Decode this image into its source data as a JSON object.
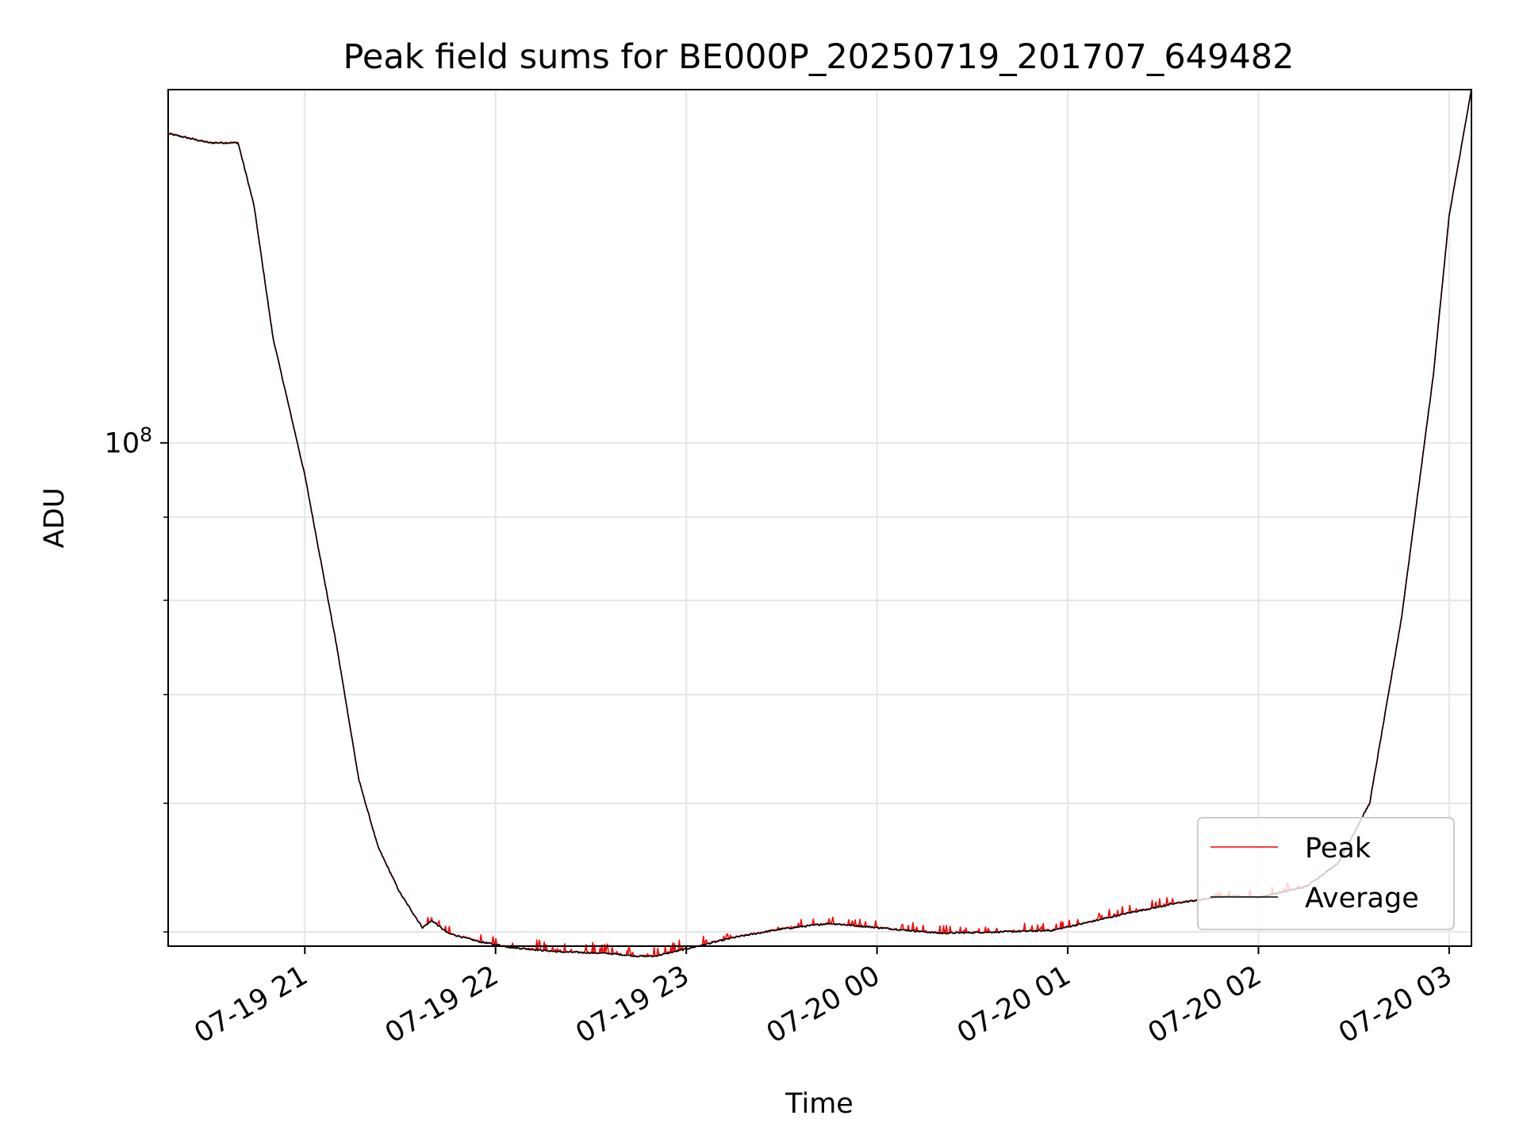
{
  "chart_data": {
    "type": "line",
    "title": "Peak field sums for BE000P_20250719_201707_649482",
    "xlabel": "Time",
    "ylabel": "ADU",
    "yscale": "log",
    "x_type": "datetime",
    "xlim": [
      "2025-07-19 20:17",
      "2025-07-20 03:07"
    ],
    "ylim": [
      49000000,
      165000000
    ],
    "grid": true,
    "legend_position": "lower-right",
    "x_ticks": [
      {
        "value": "2025-07-19 21:00",
        "label": "07-19 21"
      },
      {
        "value": "2025-07-19 22:00",
        "label": "07-19 22"
      },
      {
        "value": "2025-07-19 23:00",
        "label": "07-19 23"
      },
      {
        "value": "2025-07-20 00:00",
        "label": "07-20 00"
      },
      {
        "value": "2025-07-20 01:00",
        "label": "07-20 01"
      },
      {
        "value": "2025-07-20 02:00",
        "label": "07-20 02"
      },
      {
        "value": "2025-07-20 03:00",
        "label": "07-20 03"
      }
    ],
    "y_major_ticks": [
      {
        "value": 100000000,
        "label_base": "10",
        "label_exp": "8"
      }
    ],
    "y_minor_ticks": [
      50000000,
      60000000,
      70000000,
      80000000,
      90000000,
      200000000
    ],
    "series": [
      {
        "name": "Average",
        "color": "#000000",
        "x": [
          "2025-07-19 20:17",
          "2025-07-19 20:30",
          "2025-07-19 20:39",
          "2025-07-19 20:44",
          "2025-07-19 20:50",
          "2025-07-19 21:00",
          "2025-07-19 21:10",
          "2025-07-19 21:17",
          "2025-07-19 21:23",
          "2025-07-19 21:30",
          "2025-07-19 21:37",
          "2025-07-19 21:40",
          "2025-07-19 21:45",
          "2025-07-19 21:55",
          "2025-07-19 22:05",
          "2025-07-19 22:20",
          "2025-07-19 22:35",
          "2025-07-19 22:45",
          "2025-07-19 22:50",
          "2025-07-19 23:00",
          "2025-07-19 23:15",
          "2025-07-19 23:30",
          "2025-07-19 23:45",
          "2025-07-20 00:00",
          "2025-07-20 00:20",
          "2025-07-20 00:40",
          "2025-07-20 00:55",
          "2025-07-20 01:05",
          "2025-07-20 01:20",
          "2025-07-20 01:35",
          "2025-07-20 01:50",
          "2025-07-20 02:00",
          "2025-07-20 02:15",
          "2025-07-20 02:25",
          "2025-07-20 02:35",
          "2025-07-20 02:45",
          "2025-07-20 02:55",
          "2025-07-20 03:00",
          "2025-07-20 03:07"
        ],
        "y": [
          155000000,
          153000000,
          153000000,
          140000000,
          116000000,
          95500000,
          75000000,
          62000000,
          56400000,
          52800000,
          50300000,
          50800000,
          49900000,
          49300000,
          48900000,
          48600000,
          48500000,
          48300000,
          48300000,
          48800000,
          49600000,
          50200000,
          50600000,
          50300000,
          49900000,
          50000000,
          50100000,
          50600000,
          51400000,
          52100000,
          52600000,
          52500000,
          53300000,
          55100000,
          60000000,
          78000000,
          110000000,
          138000000,
          165000000
        ]
      },
      {
        "name": "Peak",
        "color": "#ff0000",
        "spike_windows": [
          {
            "from": "2025-07-19 21:35",
            "to": "2025-07-19 23:00",
            "max_ratio": 1.015
          },
          {
            "from": "2025-07-19 23:05",
            "to": "2025-07-20 00:35",
            "max_ratio": 1.012
          },
          {
            "from": "2025-07-20 00:35",
            "to": "2025-07-20 02:15",
            "max_ratio": 1.011
          }
        ]
      }
    ]
  }
}
